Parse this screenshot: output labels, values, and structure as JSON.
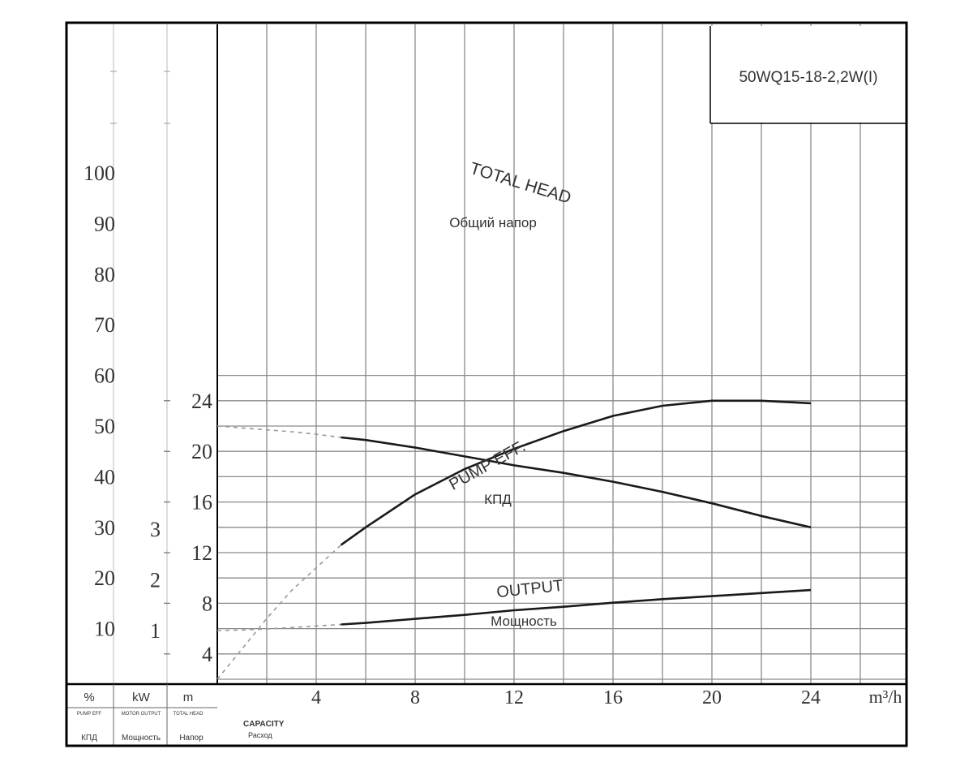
{
  "chart_data": {
    "type": "line",
    "model_label": "50WQ15-18-2,2W(I)",
    "x_unit_label": "m³/h",
    "x_ticks": [
      4,
      8,
      12,
      16,
      20,
      24
    ],
    "xlim": [
      0,
      28
    ],
    "axes": {
      "head": {
        "unit": "m",
        "label_en": "TOTAL HEAD",
        "label_ru": "Напор",
        "ticks": [
          4,
          8,
          12,
          16,
          20,
          24
        ],
        "ylim": [
          2,
          26
        ]
      },
      "power": {
        "unit": "kW",
        "label_en": "MOTOR OUTPUT",
        "label_ru": "Мощность",
        "ticks": [
          1,
          2,
          3
        ]
      },
      "efficiency": {
        "unit": "%",
        "label_en": "PUMP EFF",
        "label_ru": "КПД",
        "ticks": [
          10,
          20,
          30,
          40,
          50,
          60,
          70,
          80,
          90,
          100
        ]
      }
    },
    "capacity_label_en": "CAPACITY",
    "capacity_label_ru": "Расход",
    "series": [
      {
        "name": "TOTAL HEAD",
        "name_ru": "Общий напор",
        "axis": "head",
        "dashed_x": [
          0,
          1,
          2,
          3,
          4,
          5
        ],
        "dashed_y": [
          22,
          21.85,
          21.7,
          21.55,
          21.35,
          21.1
        ],
        "x": [
          5,
          6,
          8,
          10,
          12,
          14,
          16,
          18,
          20,
          22,
          24
        ],
        "y": [
          21.1,
          20.9,
          20.3,
          19.6,
          18.9,
          18.3,
          17.6,
          16.8,
          15.9,
          14.9,
          14.0
        ]
      },
      {
        "name": "PUMP EFF.",
        "name_ru": "КПД",
        "axis": "efficiency",
        "dashed_x": [
          0,
          1,
          2,
          3,
          4,
          5
        ],
        "dashed_y": [
          0,
          6,
          12,
          17.5,
          22,
          26.5
        ],
        "x": [
          5,
          6,
          8,
          10,
          12,
          14,
          16,
          18,
          20,
          22,
          24
        ],
        "y": [
          26.5,
          30,
          36.5,
          41.5,
          45.5,
          49,
          52,
          54,
          55,
          55,
          54.5
        ]
      },
      {
        "name": "OUTPUT",
        "name_ru": "Мощность",
        "axis": "power",
        "dashed_x": [
          0,
          1,
          2,
          3,
          4,
          5
        ],
        "dashed_y": [
          1.0,
          1.01,
          1.03,
          1.06,
          1.09,
          1.12
        ],
        "x": [
          5,
          6,
          8,
          10,
          12,
          14,
          16,
          18,
          20,
          22,
          24
        ],
        "y": [
          1.12,
          1.15,
          1.23,
          1.31,
          1.4,
          1.47,
          1.55,
          1.62,
          1.68,
          1.74,
          1.8
        ]
      }
    ],
    "grid": true
  }
}
